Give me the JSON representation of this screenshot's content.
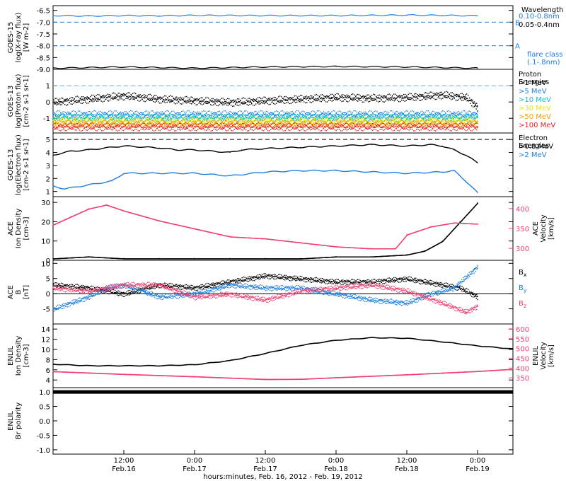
{
  "chart_data": [
    {
      "type": "line",
      "panel": "goes15-xray",
      "ylabel_lines": [
        "GOES-15",
        "log(X-ray flux)",
        "[W m-2]"
      ],
      "ylim": [
        -9.0,
        -6.3
      ],
      "yticks": [
        "-6.5",
        "-7.0",
        "-7.5",
        "-8.0",
        "-8.5",
        "-9.0"
      ],
      "reference_lines": [
        {
          "value": -7.0,
          "label": "B"
        },
        {
          "value": -8.0,
          "label": "A"
        }
      ],
      "legend_title": "Wavelength",
      "legend_notes": [
        "flare class",
        "(.1-.8nm)"
      ],
      "series": [
        {
          "name": "0.10-0.8nm",
          "color": "#1e7fe0",
          "x": [
            0,
            6,
            12,
            18,
            24,
            36,
            48,
            60,
            66,
            72
          ],
          "y": [
            -6.72,
            -6.74,
            -6.72,
            -6.73,
            -6.71,
            -6.72,
            -6.72,
            -6.7,
            -6.71,
            -6.73
          ]
        },
        {
          "name": "0.05-0.4nm",
          "color": "#000000",
          "x": [
            0,
            12,
            24,
            36,
            48,
            60,
            72
          ],
          "y": [
            -8.95,
            -8.9,
            -8.95,
            -8.9,
            -8.88,
            -8.9,
            -8.95
          ]
        }
      ]
    },
    {
      "type": "scatter",
      "panel": "goes13-proton",
      "ylabel_lines": [
        "GOES-13",
        "log(Proton flux)",
        "[cm-2 s-1 sr-1]"
      ],
      "ylim": [
        -1.9,
        2.0
      ],
      "yticks": [
        "1",
        "0",
        "-1"
      ],
      "reference_lines": [
        {
          "value": 1.0,
          "label": ""
        }
      ],
      "legend_title_lines": [
        "Proton",
        "Energies"
      ],
      "series": [
        {
          "name": ">1 MeV",
          "color": "#000000",
          "x": [
            0,
            6,
            12,
            18,
            24,
            30,
            36,
            42,
            48,
            54,
            60,
            66,
            70,
            72
          ],
          "y": [
            0.0,
            0.2,
            0.4,
            0.2,
            0.1,
            0.0,
            0.1,
            0.2,
            0.3,
            0.25,
            0.3,
            0.45,
            0.3,
            -0.3
          ]
        },
        {
          "name": ">5 MeV",
          "color": "#1e7fe0",
          "x": [
            0,
            24,
            48,
            72
          ],
          "y": [
            -0.75,
            -0.75,
            -0.75,
            -0.75
          ]
        },
        {
          "name": ">10 MeV",
          "color": "#00c8c8",
          "x": [
            0,
            24,
            48,
            72
          ],
          "y": [
            -0.95,
            -0.95,
            -0.95,
            -0.95
          ]
        },
        {
          "name": ">30 MeV",
          "color": "#e8e800",
          "x": [
            0,
            24,
            48,
            72
          ],
          "y": [
            -1.15,
            -1.15,
            -1.15,
            -1.15
          ]
        },
        {
          "name": ">50 MeV",
          "color": "#f5a000",
          "x": [
            0,
            24,
            48,
            72
          ],
          "y": [
            -1.3,
            -1.3,
            -1.3,
            -1.3
          ]
        },
        {
          "name": ">100 MeV",
          "color": "#e82020",
          "x": [
            0,
            24,
            48,
            72
          ],
          "y": [
            -1.5,
            -1.5,
            -1.5,
            -1.5
          ]
        }
      ]
    },
    {
      "type": "line",
      "panel": "goes13-electron",
      "ylabel_lines": [
        "GOES-13",
        "log(Electron flux)",
        "[cm-2 s-1 sr-1]"
      ],
      "ylim": [
        0.6,
        5.5
      ],
      "yticks": [
        "5",
        "4",
        "3",
        "2",
        "1"
      ],
      "reference_lines": [
        {
          "value": 5.0,
          "label": ""
        }
      ],
      "legend_title_lines": [
        "Electron",
        "Energies"
      ],
      "series": [
        {
          "name": ">0.8 MeV",
          "color": "#000000",
          "x": [
            0,
            3,
            6,
            10,
            12,
            18,
            21,
            24,
            30,
            32,
            36,
            42,
            48,
            54,
            60,
            64,
            66,
            68,
            70,
            72
          ],
          "y": [
            3.8,
            4.1,
            4.2,
            4.4,
            4.5,
            4.35,
            4.2,
            4.2,
            4.0,
            4.2,
            4.3,
            4.4,
            4.5,
            4.6,
            4.5,
            4.6,
            4.5,
            4.2,
            3.8,
            3.2
          ]
        },
        {
          "name": ">2 MeV",
          "color": "#1e7fe0",
          "x": [
            0,
            2,
            6,
            10,
            12,
            18,
            24,
            30,
            36,
            42,
            48,
            54,
            60,
            66,
            68,
            70,
            72
          ],
          "y": [
            1.4,
            1.2,
            1.5,
            1.8,
            2.4,
            2.4,
            2.4,
            2.2,
            2.5,
            2.6,
            2.6,
            2.5,
            2.4,
            2.5,
            2.6,
            1.8,
            0.9
          ]
        }
      ]
    },
    {
      "type": "scatter",
      "panel": "ace-plasma",
      "ylabel_lines": [
        "ACE",
        "Ion Density",
        "[cm-3]"
      ],
      "ylim": [
        0,
        33
      ],
      "yticks": [
        "30",
        "20",
        "10",
        "0"
      ],
      "y2label_lines": [
        "ACE",
        "Velocity",
        "[km/s]"
      ],
      "y2lim": [
        270,
        430
      ],
      "y2ticks": [
        "400",
        "350",
        "300"
      ],
      "series": [
        {
          "name": "Ion Density",
          "color": "#000000",
          "axis": "left",
          "x": [
            0,
            6,
            12,
            18,
            24,
            30,
            36,
            42,
            48,
            54,
            60,
            63,
            66,
            69,
            72
          ],
          "y": [
            1,
            2,
            1,
            1,
            1,
            1,
            1,
            1,
            2,
            2,
            3,
            5,
            10,
            20,
            30
          ]
        },
        {
          "name": "Velocity",
          "color": "#f04070",
          "axis": "right",
          "x": [
            0,
            3,
            6,
            9,
            12,
            18,
            24,
            30,
            36,
            42,
            48,
            54,
            58,
            60,
            64,
            68,
            72
          ],
          "y": [
            360,
            380,
            400,
            410,
            395,
            370,
            350,
            330,
            325,
            315,
            305,
            300,
            300,
            335,
            355,
            365,
            362
          ]
        }
      ]
    },
    {
      "type": "line",
      "panel": "ace-imf",
      "ylabel_lines": [
        "ACE",
        "B",
        "[nT]"
      ],
      "ylim": [
        -10,
        11
      ],
      "yticks": [
        "10",
        "5",
        "0",
        "-5"
      ],
      "reference_lines": [
        {
          "value": 0,
          "label": ""
        }
      ],
      "series": [
        {
          "name": "Bx",
          "color": "#000000",
          "x": [
            0,
            6,
            12,
            18,
            24,
            30,
            36,
            42,
            48,
            54,
            60,
            66,
            69,
            72
          ],
          "y": [
            3,
            2,
            0,
            3,
            2,
            4,
            6,
            5,
            4,
            4,
            5,
            3,
            2,
            -1
          ]
        },
        {
          "name": "By",
          "color": "#1e7fe0",
          "x": [
            0,
            3,
            6,
            9,
            12,
            18,
            24,
            30,
            36,
            42,
            48,
            54,
            60,
            64,
            68,
            72
          ],
          "y": [
            -5,
            -3,
            -1,
            2,
            3,
            -1,
            0,
            3,
            2,
            2,
            0,
            -2,
            -3,
            0,
            2,
            9
          ]
        },
        {
          "name": "Bz",
          "color": "#f04070",
          "x": [
            0,
            6,
            12,
            18,
            24,
            30,
            36,
            42,
            48,
            54,
            60,
            66,
            70,
            72
          ],
          "y": [
            2,
            1,
            3,
            3,
            -1,
            0,
            -2,
            1,
            2,
            3,
            1,
            -3,
            -6,
            -4
          ]
        }
      ]
    },
    {
      "type": "line",
      "panel": "enlil-plasma",
      "ylabel_lines": [
        "ENLIL",
        "Ion Density",
        "[cm-3]"
      ],
      "ylim": [
        2.5,
        15
      ],
      "yticks": [
        "14",
        "12",
        "10",
        "8",
        "6",
        "4"
      ],
      "y2label_lines": [
        "ENLIL",
        "Velocity",
        "[km/s]"
      ],
      "y2lim": [
        300,
        625
      ],
      "y2ticks": [
        "600",
        "550",
        "500",
        "450",
        "400",
        "350"
      ],
      "series": [
        {
          "name": "Ion Density",
          "color": "#000000",
          "axis": "left",
          "x": [
            0,
            6,
            12,
            18,
            24,
            30,
            36,
            42,
            48,
            54,
            60,
            66,
            72,
            78
          ],
          "y": [
            7.1,
            6.8,
            6.8,
            6.8,
            7.0,
            7.8,
            9.2,
            10.8,
            11.8,
            12.3,
            12.2,
            11.5,
            10.7,
            10.1
          ]
        },
        {
          "name": "Velocity",
          "color": "#f04070",
          "axis": "right",
          "x": [
            0,
            12,
            24,
            36,
            42,
            48,
            60,
            72,
            78
          ],
          "y": [
            384,
            370,
            358,
            344,
            345,
            353,
            368,
            385,
            396
          ]
        }
      ]
    },
    {
      "type": "line",
      "panel": "enlil-polarity",
      "ylabel_lines": [
        "ENLIL",
        "Br polarity"
      ],
      "ylim": [
        -1.15,
        1.15
      ],
      "yticks": [
        "1.0",
        "0.5",
        "0.0",
        "-0.5",
        "-1.0"
      ],
      "series": [
        {
          "name": "Br polarity",
          "color": "#000000",
          "x": [
            0,
            78
          ],
          "y": [
            1.0,
            1.0
          ]
        }
      ]
    }
  ],
  "x_axis": {
    "xlim": [
      0,
      78
    ],
    "tick_times": [
      "12:00",
      "0:00",
      "12:00",
      "0:00",
      "12:00",
      "0:00"
    ],
    "tick_dates": [
      "Feb.16",
      "Feb.17",
      "Feb.17",
      "Feb.18",
      "Feb.18",
      "Feb.19"
    ],
    "xlabel": "hours:minutes, Feb. 16, 2012 - Feb. 19, 2012"
  }
}
